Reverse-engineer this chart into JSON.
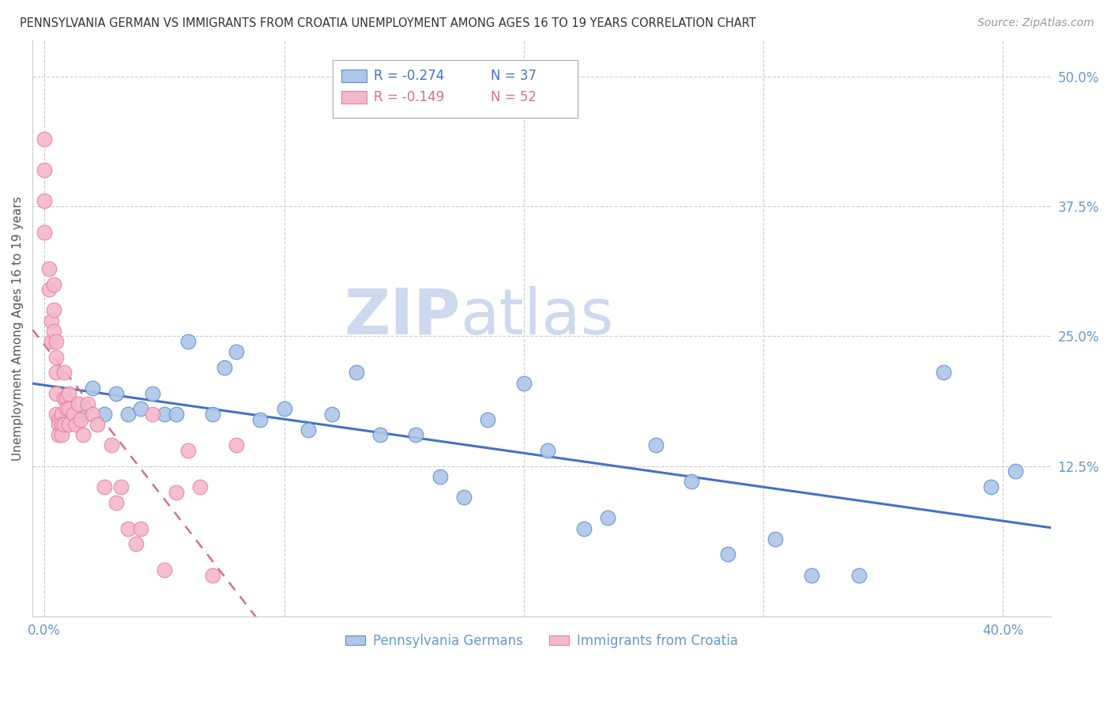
{
  "title": "PENNSYLVANIA GERMAN VS IMMIGRANTS FROM CROATIA UNEMPLOYMENT AMONG AGES 16 TO 19 YEARS CORRELATION CHART",
  "source": "Source: ZipAtlas.com",
  "ylabel": "Unemployment Among Ages 16 to 19 years",
  "yticks": [
    0.0,
    0.125,
    0.25,
    0.375,
    0.5
  ],
  "ytick_labels": [
    "",
    "12.5%",
    "25.0%",
    "37.5%",
    "50.0%"
  ],
  "xticks": [
    0.0,
    0.1,
    0.2,
    0.3,
    0.4
  ],
  "xlim": [
    -0.005,
    0.42
  ],
  "ylim": [
    -0.02,
    0.535
  ],
  "legend_blue_R": "R = -0.274",
  "legend_blue_N": "N = 37",
  "legend_pink_R": "R = -0.149",
  "legend_pink_N": "N = 52",
  "blue_label": "Pennsylvania Germans",
  "pink_label": "Immigrants from Croatia",
  "blue_color": "#aec6e8",
  "pink_color": "#f4b8cc",
  "blue_edge_color": "#5b8fd4",
  "pink_edge_color": "#e8809a",
  "blue_line_color": "#4472c4",
  "pink_line_color": "#d4708a",
  "axis_color": "#6699cc",
  "grid_color": "#cccccc",
  "watermark_zip_color": "#cdd9ee",
  "watermark_atlas_color": "#cdd9ee",
  "blue_x": [
    0.01,
    0.015,
    0.02,
    0.025,
    0.03,
    0.035,
    0.04,
    0.045,
    0.05,
    0.055,
    0.06,
    0.07,
    0.075,
    0.08,
    0.09,
    0.1,
    0.11,
    0.12,
    0.13,
    0.14,
    0.155,
    0.165,
    0.175,
    0.185,
    0.2,
    0.21,
    0.225,
    0.235,
    0.255,
    0.27,
    0.285,
    0.305,
    0.32,
    0.34,
    0.375,
    0.395,
    0.405
  ],
  "blue_y": [
    0.185,
    0.175,
    0.2,
    0.175,
    0.195,
    0.175,
    0.18,
    0.195,
    0.175,
    0.175,
    0.245,
    0.175,
    0.22,
    0.235,
    0.17,
    0.18,
    0.16,
    0.175,
    0.215,
    0.155,
    0.155,
    0.115,
    0.095,
    0.17,
    0.205,
    0.14,
    0.065,
    0.075,
    0.145,
    0.11,
    0.04,
    0.055,
    0.02,
    0.02,
    0.215,
    0.105,
    0.12
  ],
  "pink_x": [
    0.0,
    0.0,
    0.0,
    0.0,
    0.002,
    0.002,
    0.003,
    0.003,
    0.004,
    0.004,
    0.004,
    0.005,
    0.005,
    0.005,
    0.005,
    0.005,
    0.006,
    0.006,
    0.006,
    0.007,
    0.007,
    0.007,
    0.008,
    0.008,
    0.008,
    0.009,
    0.009,
    0.01,
    0.01,
    0.01,
    0.012,
    0.013,
    0.014,
    0.015,
    0.016,
    0.018,
    0.02,
    0.022,
    0.025,
    0.028,
    0.03,
    0.032,
    0.035,
    0.038,
    0.04,
    0.045,
    0.05,
    0.055,
    0.06,
    0.065,
    0.07,
    0.08
  ],
  "pink_y": [
    0.44,
    0.41,
    0.38,
    0.35,
    0.315,
    0.295,
    0.265,
    0.245,
    0.3,
    0.275,
    0.255,
    0.245,
    0.23,
    0.215,
    0.195,
    0.175,
    0.17,
    0.165,
    0.155,
    0.175,
    0.165,
    0.155,
    0.215,
    0.19,
    0.165,
    0.19,
    0.18,
    0.195,
    0.18,
    0.165,
    0.175,
    0.165,
    0.185,
    0.17,
    0.155,
    0.185,
    0.175,
    0.165,
    0.105,
    0.145,
    0.09,
    0.105,
    0.065,
    0.05,
    0.065,
    0.175,
    0.025,
    0.1,
    0.14,
    0.105,
    0.02,
    0.145
  ]
}
